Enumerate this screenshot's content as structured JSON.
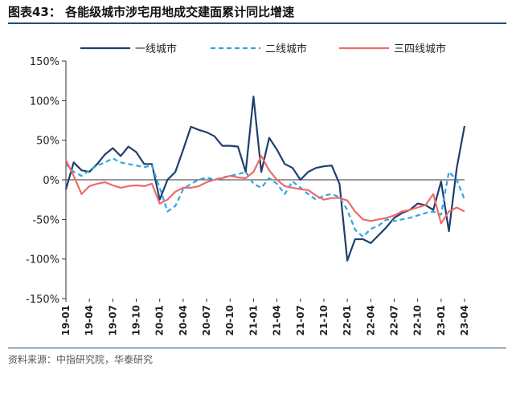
{
  "header": {
    "title": "图表43：  各能级城市涉宅用地成交建面累计同比增速"
  },
  "footer": {
    "source": "资料来源：中指研究院，华泰研究"
  },
  "chart_data": {
    "type": "line",
    "title": "图表43：  各能级城市涉宅用地成交建面累计同比增速",
    "xlabel": "",
    "ylabel": "",
    "ylim": [
      -150,
      150
    ],
    "yticks": [
      "150%",
      "100%",
      "50%",
      "0%",
      "-50%",
      "-100%",
      "-150%"
    ],
    "ytick_values": [
      150,
      100,
      50,
      0,
      -50,
      -100,
      -150
    ],
    "categories": [
      "19-01",
      "19-02",
      "19-03",
      "19-04",
      "19-05",
      "19-06",
      "19-07",
      "19-08",
      "19-09",
      "19-10",
      "19-11",
      "19-12",
      "20-01",
      "20-02",
      "20-03",
      "20-04",
      "20-05",
      "20-06",
      "20-07",
      "20-08",
      "20-09",
      "20-10",
      "20-11",
      "20-12",
      "21-01",
      "21-02",
      "21-03",
      "21-04",
      "21-05",
      "21-06",
      "21-07",
      "21-08",
      "21-09",
      "21-10",
      "21-11",
      "21-12",
      "22-01",
      "22-02",
      "22-03",
      "22-04",
      "22-05",
      "22-06",
      "22-07",
      "22-08",
      "22-09",
      "22-10",
      "22-11",
      "22-12",
      "23-01",
      "23-02",
      "23-03",
      "23-04"
    ],
    "xtick_labels": [
      "19-01",
      "19-04",
      "19-07",
      "19-10",
      "20-01",
      "20-04",
      "20-07",
      "20-10",
      "21-01",
      "21-04",
      "21-07",
      "21-10",
      "22-01",
      "22-04",
      "22-07",
      "22-10",
      "23-01",
      "23-04"
    ],
    "legend_position": "top",
    "series": [
      {
        "name": "一线城市",
        "color": "#1f3f6e",
        "dash": "solid",
        "values": [
          -12,
          22,
          12,
          10,
          20,
          32,
          40,
          30,
          42,
          35,
          20,
          20,
          -25,
          0,
          10,
          38,
          67,
          63,
          60,
          55,
          43,
          43,
          42,
          10,
          105,
          10,
          53,
          38,
          20,
          15,
          0,
          10,
          15,
          17,
          18,
          -5,
          -102,
          -75,
          -75,
          -80,
          -70,
          -60,
          -48,
          -42,
          -38,
          -30,
          -32,
          -38,
          -2,
          -65,
          15,
          68
        ]
      },
      {
        "name": "二线城市",
        "color": "#2ea7e0",
        "dash": "dashed",
        "values": [
          20,
          10,
          5,
          12,
          18,
          22,
          27,
          22,
          20,
          18,
          16,
          18,
          -10,
          -40,
          -33,
          -12,
          -5,
          0,
          3,
          0,
          3,
          5,
          7,
          10,
          -5,
          -10,
          2,
          -5,
          -18,
          -2,
          -10,
          -18,
          -25,
          -20,
          -18,
          -22,
          -38,
          -63,
          -72,
          -62,
          -58,
          -50,
          -52,
          -50,
          -48,
          -45,
          -42,
          -40,
          -44,
          10,
          0,
          -25
        ]
      },
      {
        "name": "三四线城市",
        "color": "#ee6b6b",
        "dash": "solid",
        "values": [
          25,
          5,
          -18,
          -8,
          -5,
          -3,
          -7,
          -10,
          -8,
          -7,
          -8,
          -5,
          -30,
          -25,
          -15,
          -10,
          -10,
          -8,
          -3,
          0,
          2,
          5,
          3,
          2,
          10,
          30,
          12,
          0,
          -8,
          -10,
          -12,
          -13,
          -20,
          -25,
          -23,
          -23,
          -26,
          -40,
          -50,
          -52,
          -50,
          -48,
          -45,
          -40,
          -38,
          -35,
          -32,
          -18,
          -55,
          -40,
          -35,
          -40
        ]
      }
    ]
  }
}
